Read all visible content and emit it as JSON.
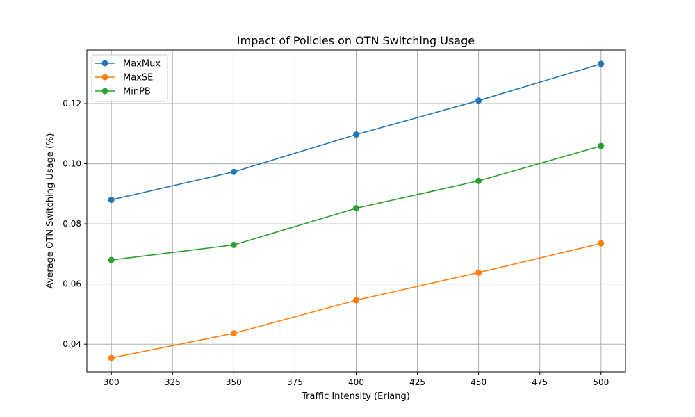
{
  "chart_data": {
    "type": "line",
    "title": "Impact of Policies on OTN Switching Usage",
    "xlabel": "Traffic Intensity (Erlang)",
    "ylabel": "Average OTN Switching Usage (%)",
    "x": [
      300,
      350,
      400,
      450,
      500
    ],
    "xlim": [
      290,
      510
    ],
    "ylim": [
      0.0308,
      0.1378
    ],
    "xticks": [
      300,
      325,
      350,
      375,
      400,
      425,
      450,
      475,
      500
    ],
    "yticks": [
      0.04,
      0.06,
      0.08,
      0.1,
      0.12
    ],
    "ytick_labels": [
      "0.04",
      "0.06",
      "0.08",
      "0.10",
      "0.12"
    ],
    "grid": true,
    "legend_position": "top-left",
    "series": [
      {
        "name": "MaxMux",
        "color": "#1f77b4",
        "values": [
          0.088,
          0.0973,
          0.1097,
          0.121,
          0.1332
        ]
      },
      {
        "name": "MaxSE",
        "color": "#ff7f0e",
        "values": [
          0.0354,
          0.0436,
          0.0546,
          0.0638,
          0.0735
        ]
      },
      {
        "name": "MinPB",
        "color": "#2ca02c",
        "values": [
          0.068,
          0.073,
          0.0852,
          0.0943,
          0.1059
        ]
      }
    ]
  }
}
